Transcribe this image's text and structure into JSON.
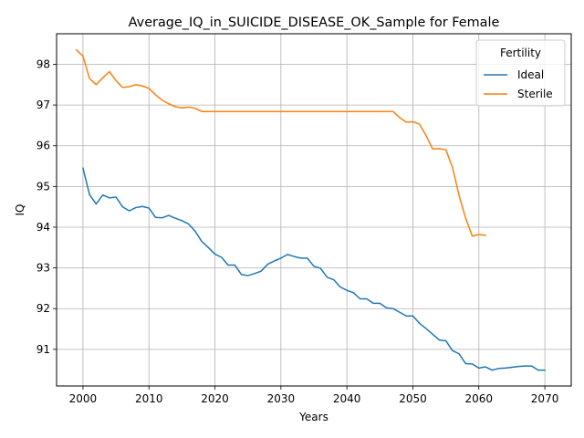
{
  "chart_data": {
    "type": "line",
    "title": "Average_IQ_in_SUICIDE_DISEASE_OK_Sample for Female",
    "xlabel": "Years",
    "ylabel": "IQ",
    "xlim": [
      1996,
      2074
    ],
    "ylim": [
      90.1,
      98.75
    ],
    "xticks": [
      2000,
      2010,
      2020,
      2030,
      2040,
      2050,
      2060,
      2070
    ],
    "yticks": [
      91,
      92,
      93,
      94,
      95,
      96,
      97,
      98
    ],
    "grid": true,
    "legend": {
      "title": "Fertility",
      "placement": "top-right"
    },
    "series": [
      {
        "name": "Ideal",
        "color": "#1f77b4",
        "x": [
          2000,
          2001,
          2002,
          2003,
          2004,
          2005,
          2006,
          2007,
          2008,
          2009,
          2010,
          2011,
          2012,
          2013,
          2014,
          2015,
          2016,
          2017,
          2018,
          2019,
          2020,
          2021,
          2022,
          2023,
          2024,
          2025,
          2026,
          2027,
          2028,
          2029,
          2030,
          2031,
          2032,
          2033,
          2034,
          2035,
          2036,
          2037,
          2038,
          2039,
          2040,
          2041,
          2042,
          2043,
          2044,
          2045,
          2046,
          2047,
          2048,
          2049,
          2050,
          2051,
          2052,
          2053,
          2054,
          2055,
          2056,
          2057,
          2058,
          2059,
          2060,
          2061,
          2062,
          2063,
          2064,
          2065,
          2066,
          2067,
          2068,
          2069,
          2070
        ],
        "y": [
          95.45,
          94.8,
          94.57,
          94.79,
          94.72,
          94.74,
          94.5,
          94.4,
          94.48,
          94.51,
          94.47,
          94.24,
          94.23,
          94.29,
          94.22,
          94.16,
          94.08,
          93.9,
          93.65,
          93.5,
          93.34,
          93.26,
          93.07,
          93.07,
          92.84,
          92.81,
          92.86,
          92.92,
          93.09,
          93.17,
          93.24,
          93.33,
          93.28,
          93.24,
          93.24,
          93.04,
          92.99,
          92.77,
          92.71,
          92.53,
          92.45,
          92.39,
          92.24,
          92.24,
          92.13,
          92.13,
          92.02,
          92.0,
          91.91,
          91.82,
          91.82,
          91.64,
          91.51,
          91.37,
          91.23,
          91.21,
          90.97,
          90.89,
          90.65,
          90.64,
          90.54,
          90.57,
          90.49,
          90.53,
          90.54,
          90.56,
          90.58,
          90.59,
          90.59,
          90.49,
          90.49
        ]
      },
      {
        "name": "Sterile",
        "color": "#ff7f0e",
        "x": [
          1999,
          2000,
          2001,
          2002,
          2003,
          2004,
          2005,
          2006,
          2007,
          2008,
          2009,
          2010,
          2011,
          2012,
          2013,
          2014,
          2015,
          2016,
          2017,
          2018,
          2019,
          2020,
          2021,
          2022,
          2023,
          2024,
          2025,
          2026,
          2027,
          2028,
          2029,
          2030,
          2031,
          2032,
          2033,
          2034,
          2035,
          2036,
          2037,
          2038,
          2039,
          2040,
          2041,
          2042,
          2043,
          2044,
          2045,
          2046,
          2047,
          2048,
          2049,
          2050,
          2051,
          2052,
          2053,
          2054,
          2055,
          2056,
          2057,
          2058,
          2059,
          2060,
          2061
        ],
        "y": [
          98.35,
          98.2,
          97.65,
          97.5,
          97.67,
          97.82,
          97.6,
          97.43,
          97.45,
          97.5,
          97.47,
          97.41,
          97.25,
          97.12,
          97.03,
          96.96,
          96.93,
          96.95,
          96.92,
          96.84,
          96.84,
          96.84,
          96.84,
          96.84,
          96.84,
          96.84,
          96.84,
          96.84,
          96.84,
          96.84,
          96.84,
          96.84,
          96.84,
          96.84,
          96.84,
          96.84,
          96.84,
          96.84,
          96.84,
          96.84,
          96.84,
          96.84,
          96.84,
          96.84,
          96.84,
          96.84,
          96.84,
          96.84,
          96.84,
          96.69,
          96.58,
          96.59,
          96.53,
          96.25,
          95.92,
          95.93,
          95.9,
          95.47,
          94.78,
          94.22,
          93.78,
          93.82,
          93.8
        ]
      }
    ]
  }
}
